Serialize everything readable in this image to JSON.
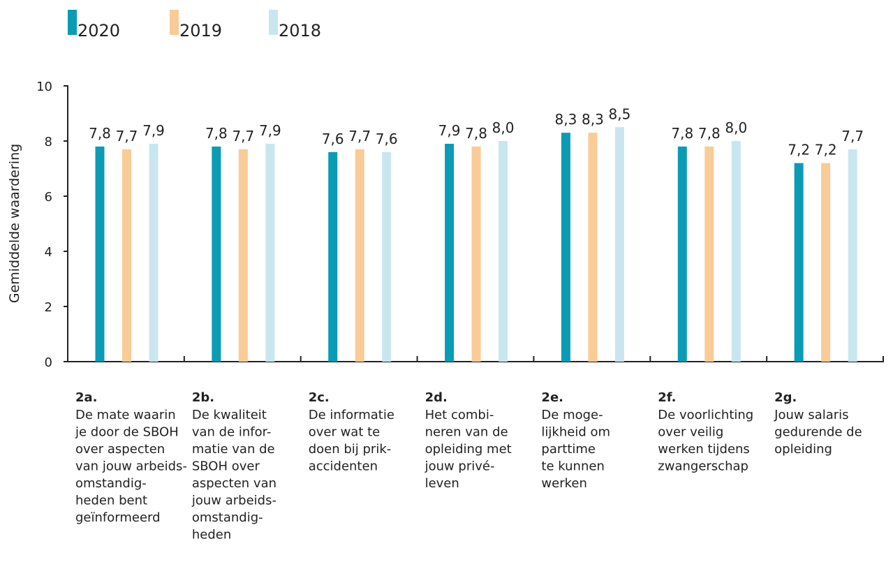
{
  "chart_data": {
    "type": "bar",
    "y_label": "Gemiddelde waardering",
    "categories": [
      "2a.",
      "2b.",
      "2c.",
      "2d.",
      "2e.",
      "2f.",
      "2g."
    ],
    "category_descriptions": [
      [
        "De mate waarin",
        "je door de SBOH",
        "over aspecten",
        "van jouw arbeids-",
        "omstandig-",
        "heden bent",
        "geïnformeerd"
      ],
      [
        "De kwaliteit",
        "van de infor-",
        "matie van de",
        "SBOH over",
        "aspecten van",
        "jouw arbeids-",
        "omstandig-",
        "heden"
      ],
      [
        "De informatie",
        "over wat te",
        "doen bij prik-",
        "accidenten"
      ],
      [
        "Het combi-",
        "neren van de",
        "opleiding met",
        "jouw privé-",
        "leven"
      ],
      [
        "De moge-",
        "lijkheid om",
        "parttime",
        "te kunnen",
        "werken"
      ],
      [
        "De voorlichting",
        "over veilig",
        "werken tijdens",
        "zwangerschap"
      ],
      [
        "Jouw salaris",
        "gedurende de",
        "opleiding"
      ]
    ],
    "series": [
      {
        "name": "2020",
        "color": "#0a9bb5",
        "values": [
          7.8,
          7.8,
          7.6,
          7.9,
          8.3,
          7.8,
          7.2
        ],
        "value_labels": [
          "7,8",
          "7,8",
          "7,6",
          "7,9",
          "8,3",
          "7,8",
          "7,2"
        ]
      },
      {
        "name": "2019",
        "color": "#f9cb96",
        "values": [
          7.7,
          7.7,
          7.7,
          7.8,
          8.3,
          7.8,
          7.2
        ],
        "value_labels": [
          "7,7",
          "7,7",
          "7,7",
          "7,8",
          "8,3",
          "7,8",
          "7,2"
        ]
      },
      {
        "name": "2018",
        "color": "#c9e6ef",
        "values": [
          7.9,
          7.9,
          7.6,
          8.0,
          8.5,
          8.0,
          7.7
        ],
        "value_labels": [
          "7,9",
          "7,9",
          "7,6",
          "8,0",
          "8,5",
          "8,0",
          "7,7"
        ]
      }
    ],
    "ylim": [
      0,
      10
    ],
    "yticks": [
      0,
      2,
      4,
      6,
      8,
      10
    ],
    "grid": false
  }
}
